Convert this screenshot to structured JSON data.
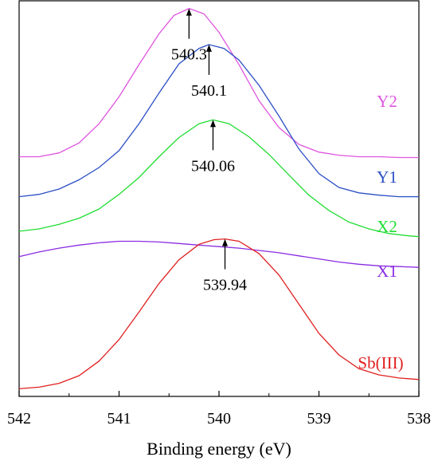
{
  "chart_data": {
    "type": "line",
    "xlabel": "Binding energy (eV)",
    "ylabel": "",
    "xlim": [
      542,
      538
    ],
    "x_reversed": true,
    "xticks": [
      "542",
      "541",
      "540",
      "539",
      "538"
    ],
    "grid": false,
    "series": [
      {
        "name": "Y2",
        "color": "#e055e0",
        "peak": 540.3,
        "peak_label": "540.3",
        "points": [
          [
            542.0,
            1.52
          ],
          [
            541.8,
            1.52
          ],
          [
            541.6,
            1.57
          ],
          [
            541.4,
            1.7
          ],
          [
            541.2,
            1.95
          ],
          [
            541.0,
            2.3
          ],
          [
            540.8,
            2.72
          ],
          [
            540.6,
            3.12
          ],
          [
            540.45,
            3.36
          ],
          [
            540.3,
            3.45
          ],
          [
            540.15,
            3.38
          ],
          [
            540.0,
            3.14
          ],
          [
            539.8,
            2.72
          ],
          [
            539.6,
            2.25
          ],
          [
            539.4,
            1.9
          ],
          [
            539.2,
            1.68
          ],
          [
            539.0,
            1.58
          ],
          [
            538.8,
            1.54
          ],
          [
            538.6,
            1.52
          ],
          [
            538.4,
            1.52
          ],
          [
            538.2,
            1.51
          ],
          [
            538.0,
            1.51
          ]
        ]
      },
      {
        "name": "Y1",
        "color": "#2b4fc4",
        "peak": 540.1,
        "peak_label": "540.1",
        "points": [
          [
            542.0,
            1.0
          ],
          [
            541.8,
            1.03
          ],
          [
            541.6,
            1.1
          ],
          [
            541.4,
            1.22
          ],
          [
            541.2,
            1.38
          ],
          [
            541.0,
            1.6
          ],
          [
            540.8,
            1.95
          ],
          [
            540.6,
            2.35
          ],
          [
            540.4,
            2.73
          ],
          [
            540.2,
            2.93
          ],
          [
            540.1,
            2.98
          ],
          [
            539.95,
            2.93
          ],
          [
            539.8,
            2.78
          ],
          [
            539.6,
            2.45
          ],
          [
            539.4,
            2.05
          ],
          [
            539.2,
            1.62
          ],
          [
            539.0,
            1.3
          ],
          [
            538.8,
            1.12
          ],
          [
            538.6,
            1.05
          ],
          [
            538.4,
            1.02
          ],
          [
            538.2,
            1.0
          ],
          [
            538.0,
            1.0
          ]
        ]
      },
      {
        "name": "X2",
        "color": "#22dd33",
        "peak": 540.06,
        "peak_label": "540.06",
        "points": [
          [
            542.0,
            0.55
          ],
          [
            541.8,
            0.58
          ],
          [
            541.6,
            0.64
          ],
          [
            541.4,
            0.72
          ],
          [
            541.2,
            0.84
          ],
          [
            541.0,
            1.03
          ],
          [
            540.8,
            1.25
          ],
          [
            540.6,
            1.52
          ],
          [
            540.4,
            1.77
          ],
          [
            540.2,
            1.95
          ],
          [
            540.06,
            2.0
          ],
          [
            539.9,
            1.95
          ],
          [
            539.7,
            1.78
          ],
          [
            539.5,
            1.55
          ],
          [
            539.3,
            1.28
          ],
          [
            539.1,
            1.02
          ],
          [
            538.9,
            0.82
          ],
          [
            538.7,
            0.67
          ],
          [
            538.5,
            0.58
          ],
          [
            538.3,
            0.52
          ],
          [
            538.1,
            0.49
          ],
          [
            538.0,
            0.48
          ]
        ]
      },
      {
        "name": "X1",
        "color": "#8a2be2",
        "peak": null,
        "peak_label": "",
        "points": [
          [
            542.0,
            0.22
          ],
          [
            541.8,
            0.28
          ],
          [
            541.6,
            0.33
          ],
          [
            541.4,
            0.37
          ],
          [
            541.2,
            0.4
          ],
          [
            541.0,
            0.42
          ],
          [
            540.8,
            0.42
          ],
          [
            540.6,
            0.41
          ],
          [
            540.4,
            0.39
          ],
          [
            540.2,
            0.37
          ],
          [
            540.0,
            0.35
          ],
          [
            539.8,
            0.33
          ],
          [
            539.6,
            0.3
          ],
          [
            539.4,
            0.27
          ],
          [
            539.2,
            0.23
          ],
          [
            539.0,
            0.19
          ],
          [
            538.8,
            0.15
          ],
          [
            538.6,
            0.12
          ],
          [
            538.4,
            0.1
          ],
          [
            538.2,
            0.09
          ],
          [
            538.0,
            0.08
          ]
        ]
      },
      {
        "name": "Sb(III)",
        "color": "#e02020",
        "peak": 539.94,
        "peak_label": "539.94",
        "points": [
          [
            542.0,
            -1.5
          ],
          [
            541.8,
            -1.48
          ],
          [
            541.6,
            -1.43
          ],
          [
            541.4,
            -1.33
          ],
          [
            541.2,
            -1.14
          ],
          [
            541.0,
            -0.86
          ],
          [
            540.8,
            -0.5
          ],
          [
            540.6,
            -0.13
          ],
          [
            540.4,
            0.18
          ],
          [
            540.2,
            0.38
          ],
          [
            540.05,
            0.44
          ],
          [
            539.94,
            0.45
          ],
          [
            539.8,
            0.42
          ],
          [
            539.6,
            0.26
          ],
          [
            539.4,
            -0.02
          ],
          [
            539.2,
            -0.4
          ],
          [
            539.0,
            -0.78
          ],
          [
            538.8,
            -1.06
          ],
          [
            538.6,
            -1.24
          ],
          [
            538.4,
            -1.32
          ],
          [
            538.2,
            -1.36
          ],
          [
            538.0,
            -1.38
          ]
        ]
      }
    ]
  }
}
